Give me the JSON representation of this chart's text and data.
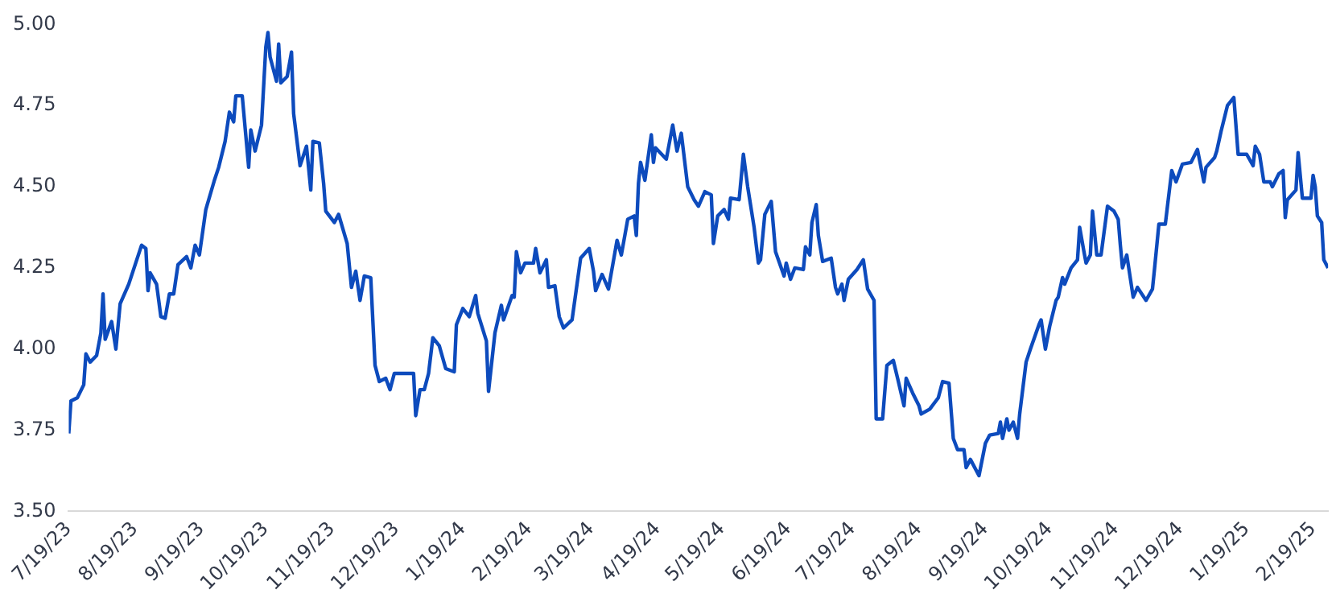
{
  "chart_data": {
    "type": "line",
    "grid": false,
    "marker": "none",
    "line_style": "solid",
    "legend": false,
    "x": [
      "2023-07-19",
      "2023-07-20",
      "2023-07-23",
      "2023-07-26",
      "2023-07-27",
      "2023-07-29",
      "2023-08-01",
      "2023-08-03",
      "2023-08-04",
      "2023-08-05",
      "2023-08-08",
      "2023-08-10",
      "2023-08-12",
      "2023-08-16",
      "2023-08-19",
      "2023-08-22",
      "2023-08-24",
      "2023-08-25",
      "2023-08-26",
      "2023-08-29",
      "2023-08-31",
      "2023-09-02",
      "2023-09-04",
      "2023-09-06",
      "2023-09-08",
      "2023-09-12",
      "2023-09-14",
      "2023-09-16",
      "2023-09-18",
      "2023-09-21",
      "2023-09-25",
      "2023-09-27",
      "2023-09-30",
      "2023-10-02",
      "2023-10-04",
      "2023-10-05",
      "2023-10-08",
      "2023-10-11",
      "2023-10-12",
      "2023-10-14",
      "2023-10-17",
      "2023-10-19",
      "2023-10-20",
      "2023-10-21",
      "2023-10-24",
      "2023-10-25",
      "2023-10-26",
      "2023-10-29",
      "2023-10-31",
      "2023-11-01",
      "2023-11-04",
      "2023-11-07",
      "2023-11-09",
      "2023-11-10",
      "2023-11-13",
      "2023-11-15",
      "2023-11-16",
      "2023-11-20",
      "2023-11-22",
      "2023-11-26",
      "2023-11-28",
      "2023-11-30",
      "2023-12-02",
      "2023-12-04",
      "2023-12-07",
      "2023-12-09",
      "2023-12-11",
      "2023-12-14",
      "2023-12-16",
      "2023-12-18",
      "2023-12-27",
      "2023-12-28",
      "2023-12-30",
      "2024-01-01",
      "2024-01-03",
      "2024-01-05",
      "2024-01-08",
      "2024-01-11",
      "2024-01-15",
      "2024-01-16",
      "2024-01-19",
      "2024-01-22",
      "2024-01-25",
      "2024-01-26",
      "2024-01-30",
      "2024-01-31",
      "2024-02-03",
      "2024-02-06",
      "2024-02-07",
      "2024-02-11",
      "2024-02-12",
      "2024-02-13",
      "2024-02-15",
      "2024-02-17",
      "2024-02-21",
      "2024-02-22",
      "2024-02-24",
      "2024-02-27",
      "2024-02-28",
      "2024-03-02",
      "2024-03-04",
      "2024-03-06",
      "2024-03-10",
      "2024-03-12",
      "2024-03-14",
      "2024-03-18",
      "2024-03-20",
      "2024-03-21",
      "2024-03-24",
      "2024-03-27",
      "2024-03-31",
      "2024-04-02",
      "2024-04-05",
      "2024-04-08",
      "2024-04-09",
      "2024-04-10",
      "2024-04-11",
      "2024-04-13",
      "2024-04-16",
      "2024-04-17",
      "2024-04-18",
      "2024-04-23",
      "2024-04-26",
      "2024-04-28",
      "2024-04-30",
      "2024-05-03",
      "2024-05-06",
      "2024-05-08",
      "2024-05-11",
      "2024-05-14",
      "2024-05-15",
      "2024-05-17",
      "2024-05-20",
      "2024-05-22",
      "2024-05-23",
      "2024-05-27",
      "2024-05-29",
      "2024-05-31",
      "2024-06-03",
      "2024-06-05",
      "2024-06-06",
      "2024-06-08",
      "2024-06-11",
      "2024-06-13",
      "2024-06-17",
      "2024-06-18",
      "2024-06-20",
      "2024-06-22",
      "2024-06-26",
      "2024-06-27",
      "2024-06-29",
      "2024-06-30",
      "2024-07-02",
      "2024-07-03",
      "2024-07-05",
      "2024-07-09",
      "2024-07-11",
      "2024-07-12",
      "2024-07-14",
      "2024-07-15",
      "2024-07-17",
      "2024-07-21",
      "2024-07-24",
      "2024-07-26",
      "2024-07-29",
      "2024-07-30",
      "2024-08-02",
      "2024-08-04",
      "2024-08-07",
      "2024-08-09",
      "2024-08-12",
      "2024-08-13",
      "2024-08-16",
      "2024-08-19",
      "2024-08-20",
      "2024-08-24",
      "2024-08-28",
      "2024-08-30",
      "2024-09-02",
      "2024-09-04",
      "2024-09-06",
      "2024-09-09",
      "2024-09-10",
      "2024-09-12",
      "2024-09-16",
      "2024-09-19",
      "2024-09-21",
      "2024-09-25",
      "2024-09-26",
      "2024-09-27",
      "2024-09-29",
      "2024-09-30",
      "2024-10-02",
      "2024-10-04",
      "2024-10-05",
      "2024-10-08",
      "2024-10-10",
      "2024-10-14",
      "2024-10-15",
      "2024-10-17",
      "2024-10-19",
      "2024-10-22",
      "2024-10-23",
      "2024-10-25",
      "2024-10-26",
      "2024-10-29",
      "2024-11-01",
      "2024-11-02",
      "2024-11-04",
      "2024-11-05",
      "2024-11-07",
      "2024-11-08",
      "2024-11-10",
      "2024-11-12",
      "2024-11-15",
      "2024-11-18",
      "2024-11-20",
      "2024-11-21",
      "2024-11-22",
      "2024-11-24",
      "2024-11-27",
      "2024-11-29",
      "2024-12-03",
      "2024-12-06",
      "2024-12-07",
      "2024-12-09",
      "2024-12-12",
      "2024-12-15",
      "2024-12-17",
      "2024-12-20",
      "2024-12-24",
      "2024-12-27",
      "2024-12-30",
      "2024-12-31",
      "2025-01-04",
      "2025-01-05",
      "2025-01-07",
      "2025-01-10",
      "2025-01-13",
      "2025-01-15",
      "2025-01-19",
      "2025-01-22",
      "2025-01-23",
      "2025-01-25",
      "2025-01-27",
      "2025-01-30",
      "2025-01-31",
      "2025-02-03",
      "2025-02-05",
      "2025-02-06",
      "2025-02-07",
      "2025-02-11",
      "2025-02-12",
      "2025-02-14",
      "2025-02-18",
      "2025-02-19",
      "2025-02-20",
      "2025-02-21",
      "2025-02-23",
      "2025-02-24",
      "2025-02-26"
    ],
    "series": [
      {
        "color": "#0d4bbd",
        "values": [
          3.74,
          3.84,
          3.85,
          3.89,
          3.985,
          3.96,
          3.98,
          4.05,
          4.17,
          4.03,
          4.085,
          4.0,
          4.14,
          4.2,
          4.26,
          4.32,
          4.31,
          4.18,
          4.235,
          4.2,
          4.1,
          4.095,
          4.17,
          4.17,
          4.26,
          4.285,
          4.25,
          4.32,
          4.29,
          4.43,
          4.52,
          4.56,
          4.64,
          4.73,
          4.7,
          4.78,
          4.78,
          4.56,
          4.675,
          4.61,
          4.69,
          4.93,
          4.975,
          4.9,
          4.825,
          4.94,
          4.82,
          4.84,
          4.915,
          4.725,
          4.565,
          4.625,
          4.49,
          4.64,
          4.635,
          4.51,
          4.425,
          4.39,
          4.415,
          4.325,
          4.19,
          4.24,
          4.15,
          4.225,
          4.22,
          3.95,
          3.9,
          3.91,
          3.875,
          3.925,
          3.925,
          3.795,
          3.875,
          3.875,
          3.925,
          4.035,
          4.01,
          3.94,
          3.93,
          4.075,
          4.125,
          4.1,
          4.165,
          4.11,
          4.025,
          3.87,
          4.05,
          4.135,
          4.09,
          4.165,
          4.16,
          4.3,
          4.235,
          4.265,
          4.265,
          4.31,
          4.235,
          4.275,
          4.19,
          4.195,
          4.1,
          4.065,
          4.09,
          4.185,
          4.28,
          4.31,
          4.24,
          4.18,
          4.23,
          4.185,
          4.335,
          4.29,
          4.4,
          4.41,
          4.35,
          4.51,
          4.575,
          4.52,
          4.66,
          4.575,
          4.62,
          4.585,
          4.69,
          4.61,
          4.665,
          4.5,
          4.46,
          4.44,
          4.485,
          4.475,
          4.325,
          4.41,
          4.43,
          4.4,
          4.465,
          4.46,
          4.6,
          4.5,
          4.375,
          4.265,
          4.275,
          4.415,
          4.455,
          4.3,
          4.225,
          4.265,
          4.215,
          4.25,
          4.245,
          4.315,
          4.29,
          4.39,
          4.445,
          4.35,
          4.27,
          4.28,
          4.19,
          4.17,
          4.2,
          4.15,
          4.215,
          4.245,
          4.275,
          4.185,
          4.15,
          3.785,
          3.785,
          3.95,
          3.965,
          3.91,
          3.825,
          3.91,
          3.865,
          3.825,
          3.8,
          3.815,
          3.85,
          3.9,
          3.895,
          3.725,
          3.69,
          3.69,
          3.635,
          3.66,
          3.61,
          3.71,
          3.735,
          3.74,
          3.775,
          3.725,
          3.785,
          3.75,
          3.775,
          3.725,
          3.8,
          3.96,
          4.0,
          4.075,
          4.09,
          4.0,
          4.07,
          4.15,
          4.16,
          4.22,
          4.2,
          4.25,
          4.275,
          4.375,
          4.3,
          4.265,
          4.29,
          4.425,
          4.29,
          4.29,
          4.44,
          4.425,
          4.4,
          4.32,
          4.25,
          4.29,
          4.16,
          4.19,
          4.15,
          4.185,
          4.25,
          4.385,
          4.385,
          4.55,
          4.515,
          4.57,
          4.575,
          4.615,
          4.515,
          4.56,
          4.59,
          4.61,
          4.67,
          4.75,
          4.775,
          4.6,
          4.6,
          4.565,
          4.625,
          4.6,
          4.515,
          4.515,
          4.5,
          4.54,
          4.55,
          4.405,
          4.46,
          4.49,
          4.605,
          4.465,
          4.465,
          4.535,
          4.5,
          4.41,
          4.39,
          4.275,
          4.25
        ]
      }
    ],
    "xlim": [
      "2023-07-19",
      "2025-02-26"
    ],
    "xticks": [
      {
        "value": "2023-07-19",
        "label": "7/19/23"
      },
      {
        "value": "2023-08-19",
        "label": "8/19/23"
      },
      {
        "value": "2023-09-19",
        "label": "9/19/23"
      },
      {
        "value": "2023-10-19",
        "label": "10/19/23"
      },
      {
        "value": "2023-11-19",
        "label": "11/19/23"
      },
      {
        "value": "2023-12-19",
        "label": "12/19/23"
      },
      {
        "value": "2024-01-19",
        "label": "1/19/24"
      },
      {
        "value": "2024-02-19",
        "label": "2/19/24"
      },
      {
        "value": "2024-03-19",
        "label": "3/19/24"
      },
      {
        "value": "2024-04-19",
        "label": "4/19/24"
      },
      {
        "value": "2024-05-19",
        "label": "5/19/24"
      },
      {
        "value": "2024-06-19",
        "label": "6/19/24"
      },
      {
        "value": "2024-07-19",
        "label": "7/19/24"
      },
      {
        "value": "2024-08-19",
        "label": "8/19/24"
      },
      {
        "value": "2024-09-19",
        "label": "9/19/24"
      },
      {
        "value": "2024-10-19",
        "label": "10/19/24"
      },
      {
        "value": "2024-11-19",
        "label": "11/19/24"
      },
      {
        "value": "2024-12-19",
        "label": "12/19/24"
      },
      {
        "value": "2025-01-19",
        "label": "1/19/25"
      },
      {
        "value": "2025-02-19",
        "label": "2/19/25"
      }
    ],
    "ylim": [
      3.5,
      5.0
    ],
    "yticks": [
      {
        "value": 3.5,
        "label": "3.50"
      },
      {
        "value": 3.75,
        "label": "3.75"
      },
      {
        "value": 4.0,
        "label": "4.00"
      },
      {
        "value": 4.25,
        "label": "4.25"
      },
      {
        "value": 4.5,
        "label": "4.50"
      },
      {
        "value": 4.75,
        "label": "4.75"
      },
      {
        "value": 5.0,
        "label": "5.00"
      }
    ]
  }
}
